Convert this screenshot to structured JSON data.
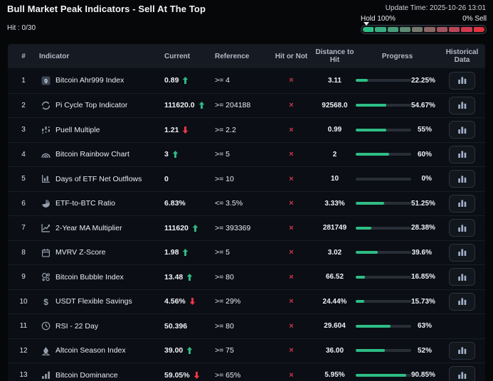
{
  "header": {
    "title": "Bull Market Peak Indicators - Sell At The Top",
    "update_time": "Update Time: 2025-10-26 13:01",
    "hit_label": "Hit : 0/30",
    "gauge": {
      "left_label": "Hold 100%",
      "right_label": "0% Sell",
      "marker_position_percent": 0,
      "segment_colors": [
        "#2ebd85",
        "#39ad80",
        "#4a9c7a",
        "#5f8a73",
        "#75786c",
        "#8c6665",
        "#a3555e",
        "#ba4757",
        "#d03a50",
        "#e3333f"
      ]
    }
  },
  "colors": {
    "accent_green": "#2ebd85",
    "alert_red": "#f23645",
    "cross_red": "#c9374e"
  },
  "table": {
    "columns": [
      "#",
      "Indicator",
      "Current",
      "Reference",
      "Hit or Not",
      "Distance to Hit",
      "Progress",
      "Historical Data"
    ],
    "rows": [
      {
        "num": "1",
        "icon": "ahr999-badge-icon",
        "indicator": "Bitcoin Ahr999 Index",
        "current": "0.89",
        "trend": "up",
        "reference": ">= 4",
        "hit": "×",
        "distance": "3.11",
        "progress_percent": 22.25,
        "progress_label": "22.25%",
        "has_history_button": true
      },
      {
        "num": "2",
        "icon": "cycle-arrows-icon",
        "indicator": "Pi Cycle Top Indicator",
        "current": "111620.0",
        "trend": "up",
        "reference": ">= 204188",
        "hit": "×",
        "distance": "92568.0",
        "progress_percent": 54.67,
        "progress_label": "54.67%",
        "has_history_button": true
      },
      {
        "num": "3",
        "icon": "scatter-chart-icon",
        "indicator": "Puell Multiple",
        "current": "1.21",
        "trend": "down",
        "reference": ">= 2.2",
        "hit": "×",
        "distance": "0.99",
        "progress_percent": 55,
        "progress_label": "55%",
        "has_history_button": true
      },
      {
        "num": "4",
        "icon": "rainbow-icon",
        "indicator": "Bitcoin Rainbow Chart",
        "current": "3",
        "trend": "up",
        "reference": ">= 5",
        "hit": "×",
        "distance": "2",
        "progress_percent": 60,
        "progress_label": "60%",
        "has_history_button": true
      },
      {
        "num": "5",
        "icon": "bar-chart-axis-icon",
        "indicator": "Days of ETF Net Outflows",
        "current": "0",
        "trend": "none",
        "reference": ">= 10",
        "hit": "×",
        "distance": "10",
        "progress_percent": 0,
        "progress_label": "0%",
        "has_history_button": true
      },
      {
        "num": "6",
        "icon": "pie-chart-icon",
        "indicator": "ETF-to-BTC Ratio",
        "current": "6.83%",
        "trend": "none",
        "reference": "<= 3.5%",
        "hit": "×",
        "distance": "3.33%",
        "progress_percent": 51.25,
        "progress_label": "51.25%",
        "has_history_button": true
      },
      {
        "num": "7",
        "icon": "line-chart-icon",
        "indicator": "2-Year MA Multiplier",
        "current": "111620",
        "trend": "up",
        "reference": ">= 393369",
        "hit": "×",
        "distance": "281749",
        "progress_percent": 28.38,
        "progress_label": "28.38%",
        "has_history_button": true
      },
      {
        "num": "8",
        "icon": "calendar-icon",
        "indicator": "MVRV Z-Score",
        "current": "1.98",
        "trend": "up",
        "reference": ">= 5",
        "hit": "×",
        "distance": "3.02",
        "progress_percent": 39.6,
        "progress_label": "39.6%",
        "has_history_button": true
      },
      {
        "num": "9",
        "icon": "bubbles-icon",
        "indicator": "Bitcoin Bubble Index",
        "current": "13.48",
        "trend": "up",
        "reference": ">= 80",
        "hit": "×",
        "distance": "66.52",
        "progress_percent": 16.85,
        "progress_label": "16.85%",
        "has_history_button": true
      },
      {
        "num": "10",
        "icon": "dollar-icon",
        "indicator": "USDT Flexible Savings",
        "current": "4.56%",
        "trend": "down",
        "reference": ">= 29%",
        "hit": "×",
        "distance": "24.44%",
        "progress_percent": 15.73,
        "progress_label": "15.73%",
        "has_history_button": true
      },
      {
        "num": "11",
        "icon": "clock-icon",
        "indicator": "RSI - 22 Day",
        "current": "50.396",
        "trend": "none",
        "reference": ">= 80",
        "hit": "×",
        "distance": "29.604",
        "progress_percent": 63,
        "progress_label": "63%",
        "has_history_button": false
      },
      {
        "num": "12",
        "icon": "flame-icon",
        "indicator": "Altcoin Season Index",
        "current": "39.00",
        "trend": "up",
        "reference": ">= 75",
        "hit": "×",
        "distance": "36.00",
        "progress_percent": 52,
        "progress_label": "52%",
        "has_history_button": true
      },
      {
        "num": "13",
        "icon": "ascending-bars-icon",
        "indicator": "Bitcoin Dominance",
        "current": "59.05%",
        "trend": "down",
        "reference": ">= 65%",
        "hit": "×",
        "distance": "5.95%",
        "progress_percent": 90.85,
        "progress_label": "90.85%",
        "has_history_button": true
      }
    ]
  }
}
